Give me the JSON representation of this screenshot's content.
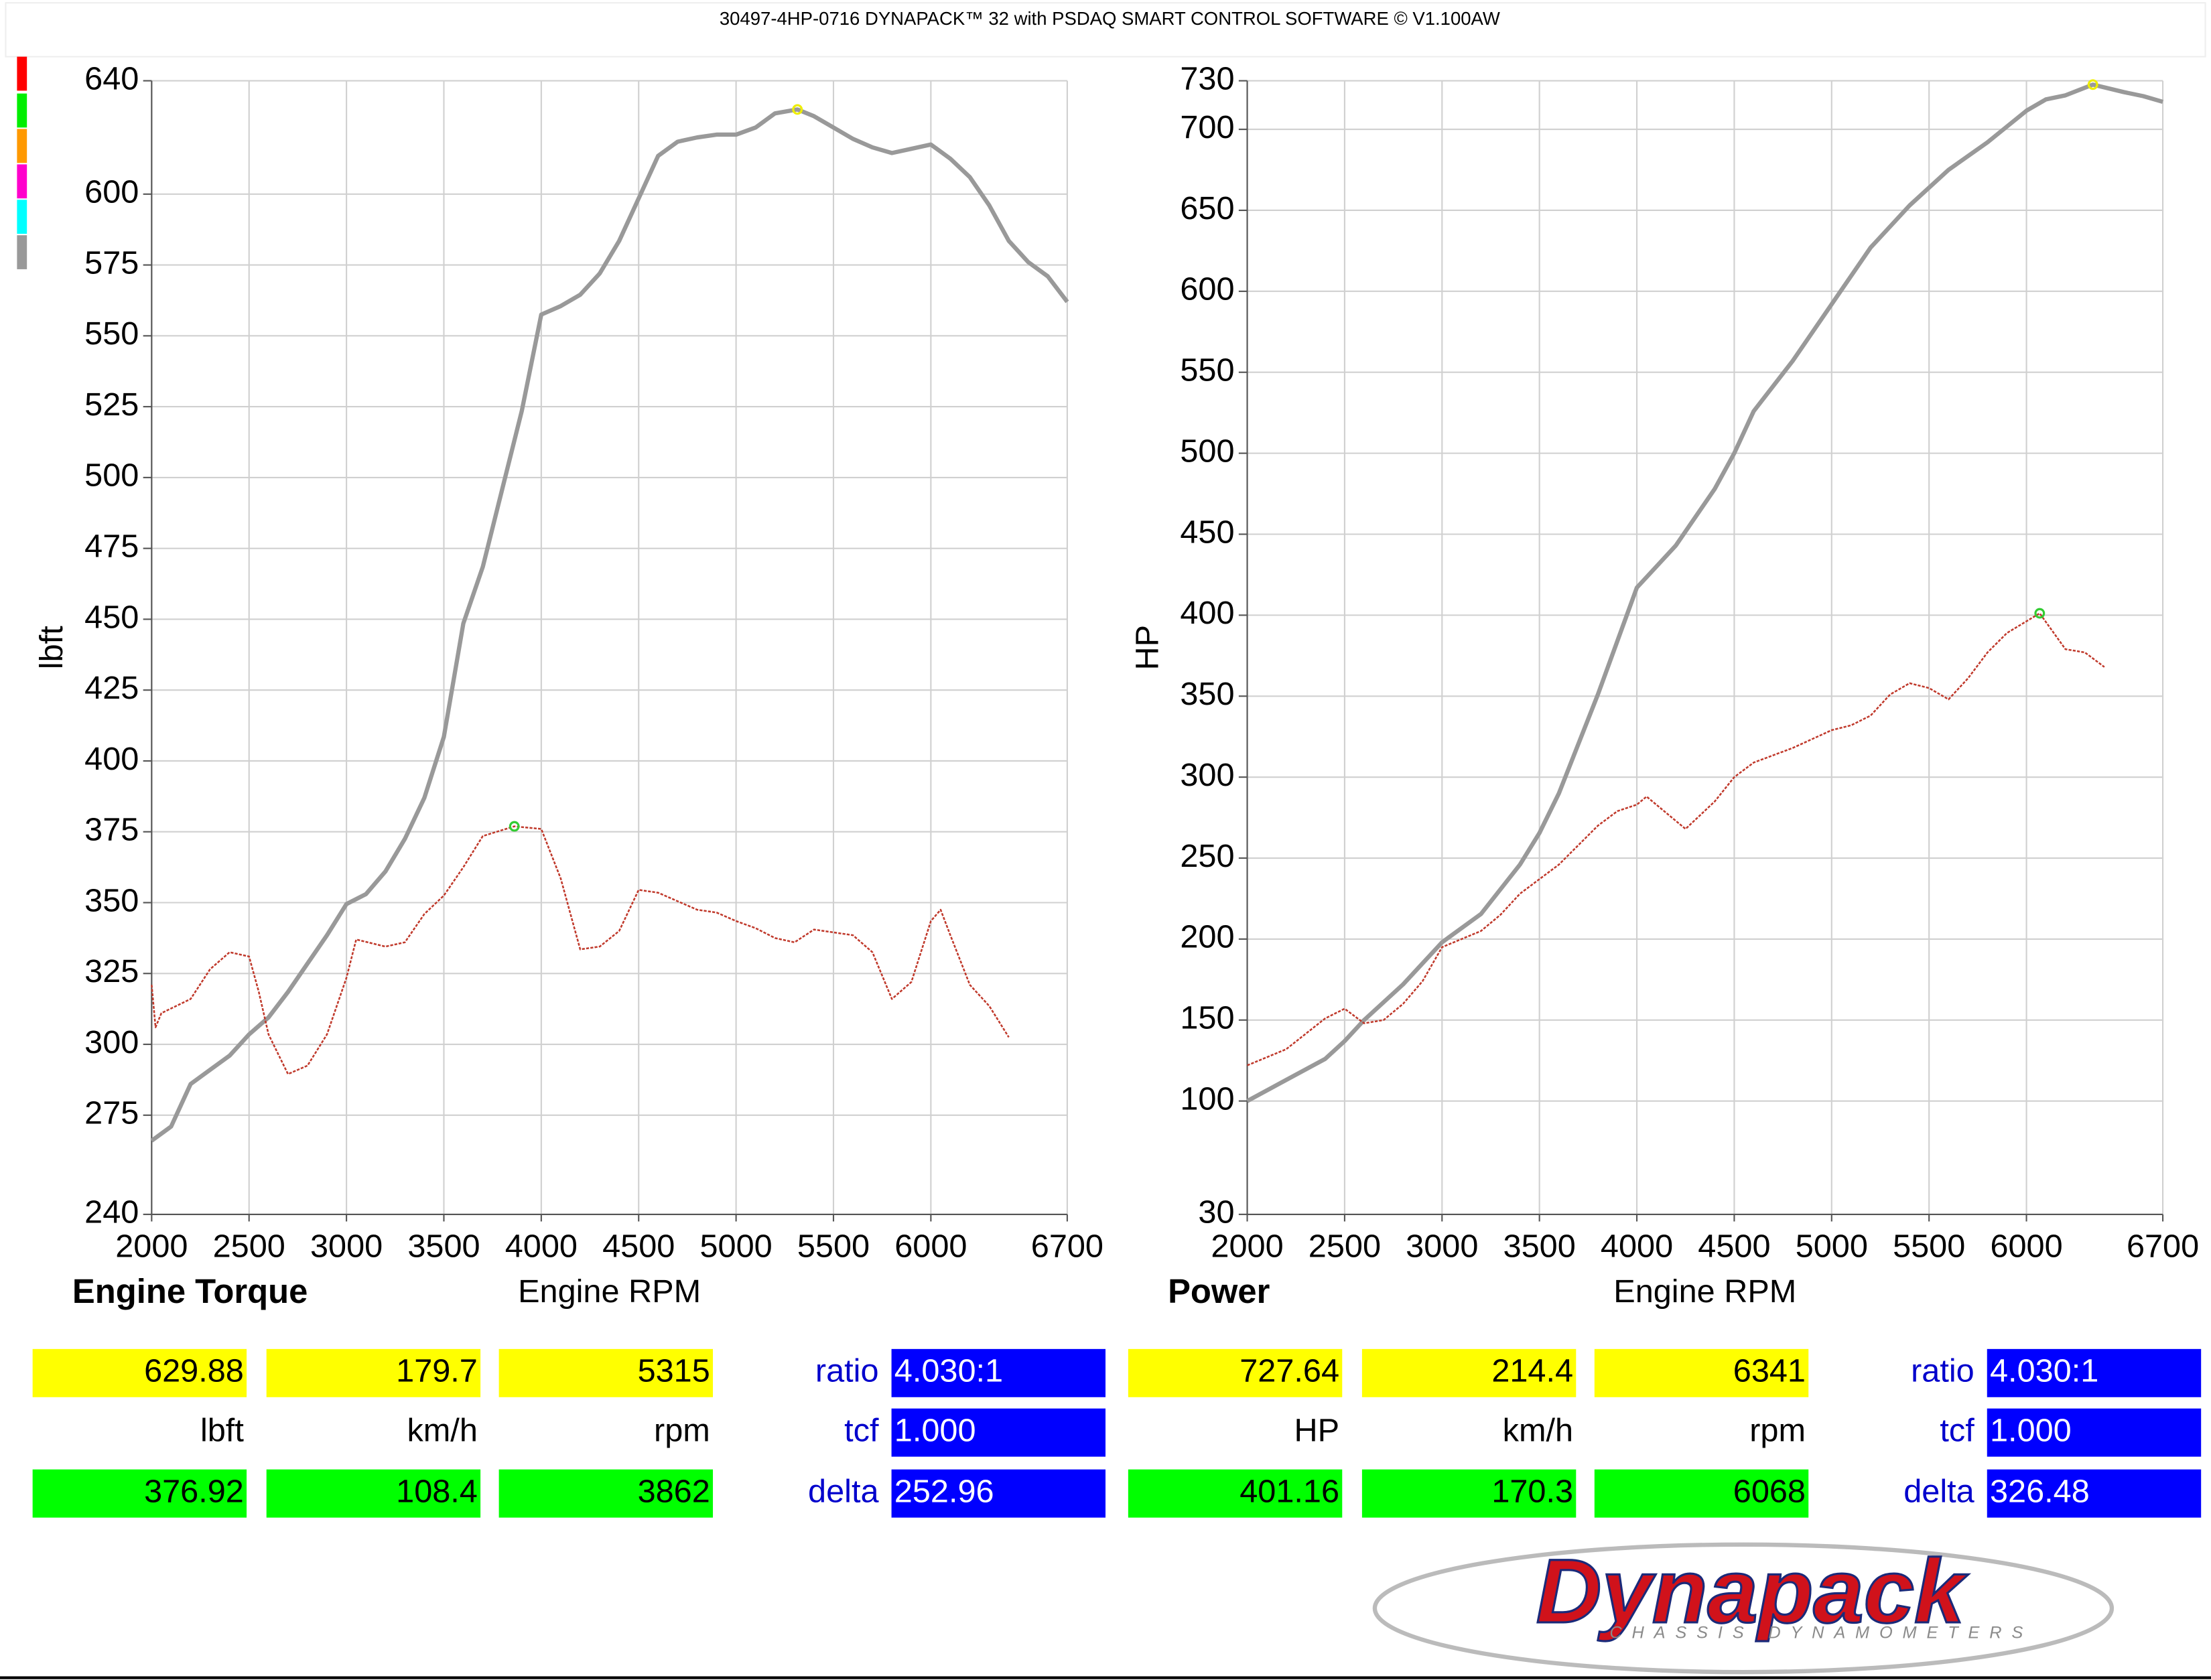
{
  "header": {
    "title": "30497-4HP-0716 DYNAPACK™ 32 with PSDAQ SMART CONTROL SOFTWARE © V1.100AW"
  },
  "logo": {
    "brand": "Dynapack",
    "tagline": "CHASSIS DYNAMOMETERS"
  },
  "chart_data": [
    {
      "type": "line",
      "title": "Engine Torque",
      "x_label": "Engine RPM",
      "y_label": "lbft",
      "xlim": [
        2000,
        6700
      ],
      "xticks": [
        2000,
        2500,
        3000,
        3500,
        4000,
        4500,
        5000,
        5500,
        6000,
        6700
      ],
      "ylim": [
        240,
        640
      ],
      "yticks": [
        240,
        275,
        300,
        325,
        350,
        375,
        400,
        425,
        450,
        475,
        500,
        525,
        550,
        575,
        600,
        640
      ],
      "grid": true,
      "series": [
        {
          "color": "#999999",
          "x": [
            2000,
            2100,
            2200,
            2300,
            2400,
            2500,
            2600,
            2700,
            2800,
            2900,
            3000,
            3100,
            3200,
            3300,
            3400,
            3500,
            3600,
            3700,
            3800,
            3900,
            4000,
            4100,
            4200,
            4300,
            4400,
            4500,
            4600,
            4700,
            4800,
            4900,
            5000,
            5100,
            5200,
            5315,
            5400,
            5500,
            5600,
            5700,
            5800,
            5900,
            6000,
            6100,
            6200,
            6300,
            6400,
            6500,
            6600,
            6700
          ],
          "values": [
            266,
            271,
            286,
            291,
            296,
            303.5,
            309.5,
            318.5,
            328.5,
            338.5,
            349.5,
            353,
            361,
            372.5,
            387,
            408.5,
            448.5,
            468.5,
            496,
            523.5,
            557.5,
            560.5,
            564.5,
            572,
            583.5,
            598.5,
            613.5,
            618.5,
            620,
            621,
            621,
            623.5,
            628.5,
            629.88,
            627.5,
            623.5,
            619.5,
            616.5,
            614.5,
            616,
            617.5,
            612.5,
            606,
            596,
            583.5,
            576,
            571,
            562
          ]
        },
        {
          "color": "#c0392b",
          "x": [
            2000,
            2020,
            2050,
            2200,
            2300,
            2400,
            2500,
            2550,
            2600,
            2700,
            2800,
            2900,
            3000,
            3050,
            3200,
            3300,
            3400,
            3500,
            3600,
            3700,
            3862,
            4000,
            4100,
            4200,
            4300,
            4400,
            4500,
            4600,
            4700,
            4800,
            4900,
            5000,
            5100,
            5200,
            5300,
            5400,
            5500,
            5600,
            5700,
            5800,
            5900,
            6000,
            6050,
            6100,
            6200,
            6300,
            6400
          ],
          "values": [
            321,
            306,
            311,
            316,
            326.5,
            332.5,
            331,
            318.5,
            303.5,
            289.5,
            292.5,
            303.5,
            323.5,
            337,
            334.5,
            336,
            346,
            352.5,
            362.5,
            373.5,
            376.92,
            376,
            358.5,
            333.5,
            334.5,
            340,
            354.5,
            353.5,
            350.5,
            347.5,
            346.5,
            343.5,
            341,
            337.5,
            336,
            340.5,
            339.5,
            338.5,
            332.5,
            316,
            322,
            343.5,
            347.5,
            338.5,
            321,
            313.5,
            302.5
          ]
        }
      ],
      "readout": {
        "rows": [
          [
            "629.88",
            "179.7",
            "5315"
          ],
          [
            "lbft",
            "km/h",
            "rpm"
          ],
          [
            "376.92",
            "108.4",
            "3862"
          ]
        ],
        "labels": [
          "ratio",
          "tcf",
          "delta"
        ],
        "values": [
          "4.030:1",
          "1.000",
          "252.96"
        ]
      }
    },
    {
      "type": "line",
      "title": "Power",
      "x_label": "Engine RPM",
      "y_label": "HP",
      "xlim": [
        2000,
        6700
      ],
      "xticks": [
        2000,
        2500,
        3000,
        3500,
        4000,
        4500,
        5000,
        5500,
        6000,
        6700
      ],
      "ylim": [
        30,
        730
      ],
      "yticks": [
        30,
        100,
        150,
        200,
        250,
        300,
        350,
        400,
        450,
        500,
        550,
        600,
        650,
        700,
        730
      ],
      "grid": true,
      "series": [
        {
          "color": "#999999",
          "x": [
            2000,
            2200,
            2400,
            2500,
            2600,
            2800,
            3000,
            3200,
            3400,
            3500,
            3600,
            3800,
            4000,
            4100,
            4200,
            4400,
            4500,
            4600,
            4800,
            5000,
            5200,
            5400,
            5600,
            5800,
            6000,
            6100,
            6200,
            6341,
            6500,
            6600,
            6700
          ],
          "values": [
            100,
            113,
            126,
            137,
            150,
            172,
            198,
            215.5,
            246,
            265.5,
            290,
            351,
            417,
            430,
            443,
            478,
            500,
            526,
            557,
            592,
            627,
            653,
            675,
            692,
            711.5,
            718.5,
            721,
            727.64,
            723,
            720.5,
            717
          ]
        },
        {
          "color": "#c0392b",
          "x": [
            2000,
            2200,
            2400,
            2500,
            2600,
            2700,
            2800,
            2900,
            3000,
            3200,
            3300,
            3400,
            3600,
            3800,
            3900,
            4000,
            4050,
            4100,
            4250,
            4400,
            4500,
            4600,
            4800,
            5000,
            5100,
            5200,
            5300,
            5400,
            5500,
            5600,
            5700,
            5800,
            5900,
            6068,
            6200,
            6300,
            6400
          ],
          "values": [
            122,
            132,
            151,
            157,
            148,
            150,
            160,
            174,
            195,
            205,
            215,
            228,
            246,
            270,
            279,
            283,
            288,
            283,
            268,
            285,
            300,
            309,
            318,
            329,
            332,
            338,
            351,
            358,
            355,
            348,
            361,
            377,
            389,
            401.16,
            379,
            377,
            368
          ]
        }
      ],
      "readout": {
        "rows": [
          [
            "727.64",
            "214.4",
            "6341"
          ],
          [
            "HP",
            "km/h",
            "rpm"
          ],
          [
            "401.16",
            "170.3",
            "6068"
          ]
        ],
        "labels": [
          "ratio",
          "tcf",
          "delta"
        ],
        "values": [
          "4.030:1",
          "1.000",
          "326.48"
        ]
      }
    }
  ]
}
